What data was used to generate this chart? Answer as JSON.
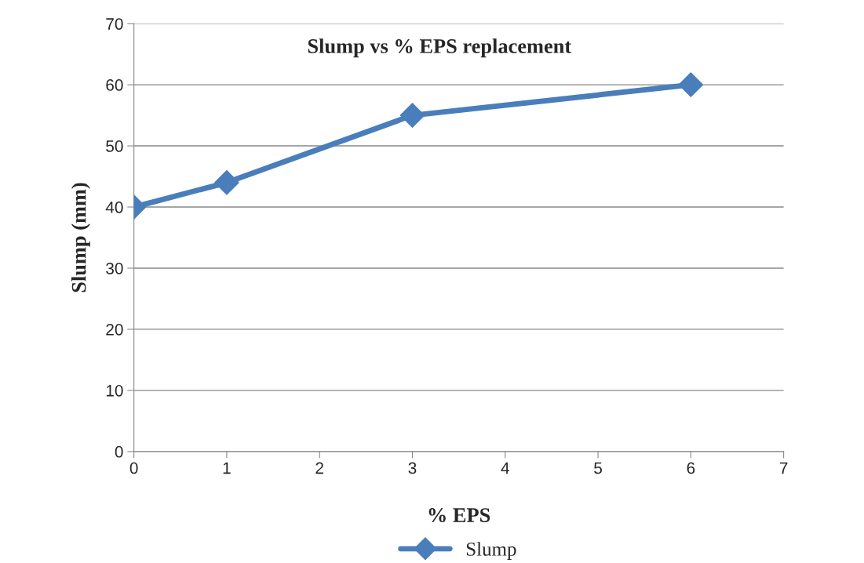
{
  "chart_data": {
    "type": "line",
    "title": "Slump vs % EPS replacement",
    "xlabel": "% EPS",
    "ylabel": "Slump (mm)",
    "x": [
      0,
      1,
      3,
      6
    ],
    "series": [
      {
        "name": "Slump",
        "color": "#4a7ebb",
        "values": [
          40,
          44,
          55,
          60
        ]
      }
    ],
    "xlim": [
      0,
      7
    ],
    "xticks": [
      0,
      1,
      2,
      3,
      4,
      5,
      6,
      7
    ],
    "ylim": [
      0,
      70
    ],
    "yticks": [
      0,
      10,
      20,
      30,
      40,
      50,
      60,
      70
    ],
    "grid": "y",
    "legend": "bottom",
    "marker": "diamond",
    "line_style": "solid"
  }
}
